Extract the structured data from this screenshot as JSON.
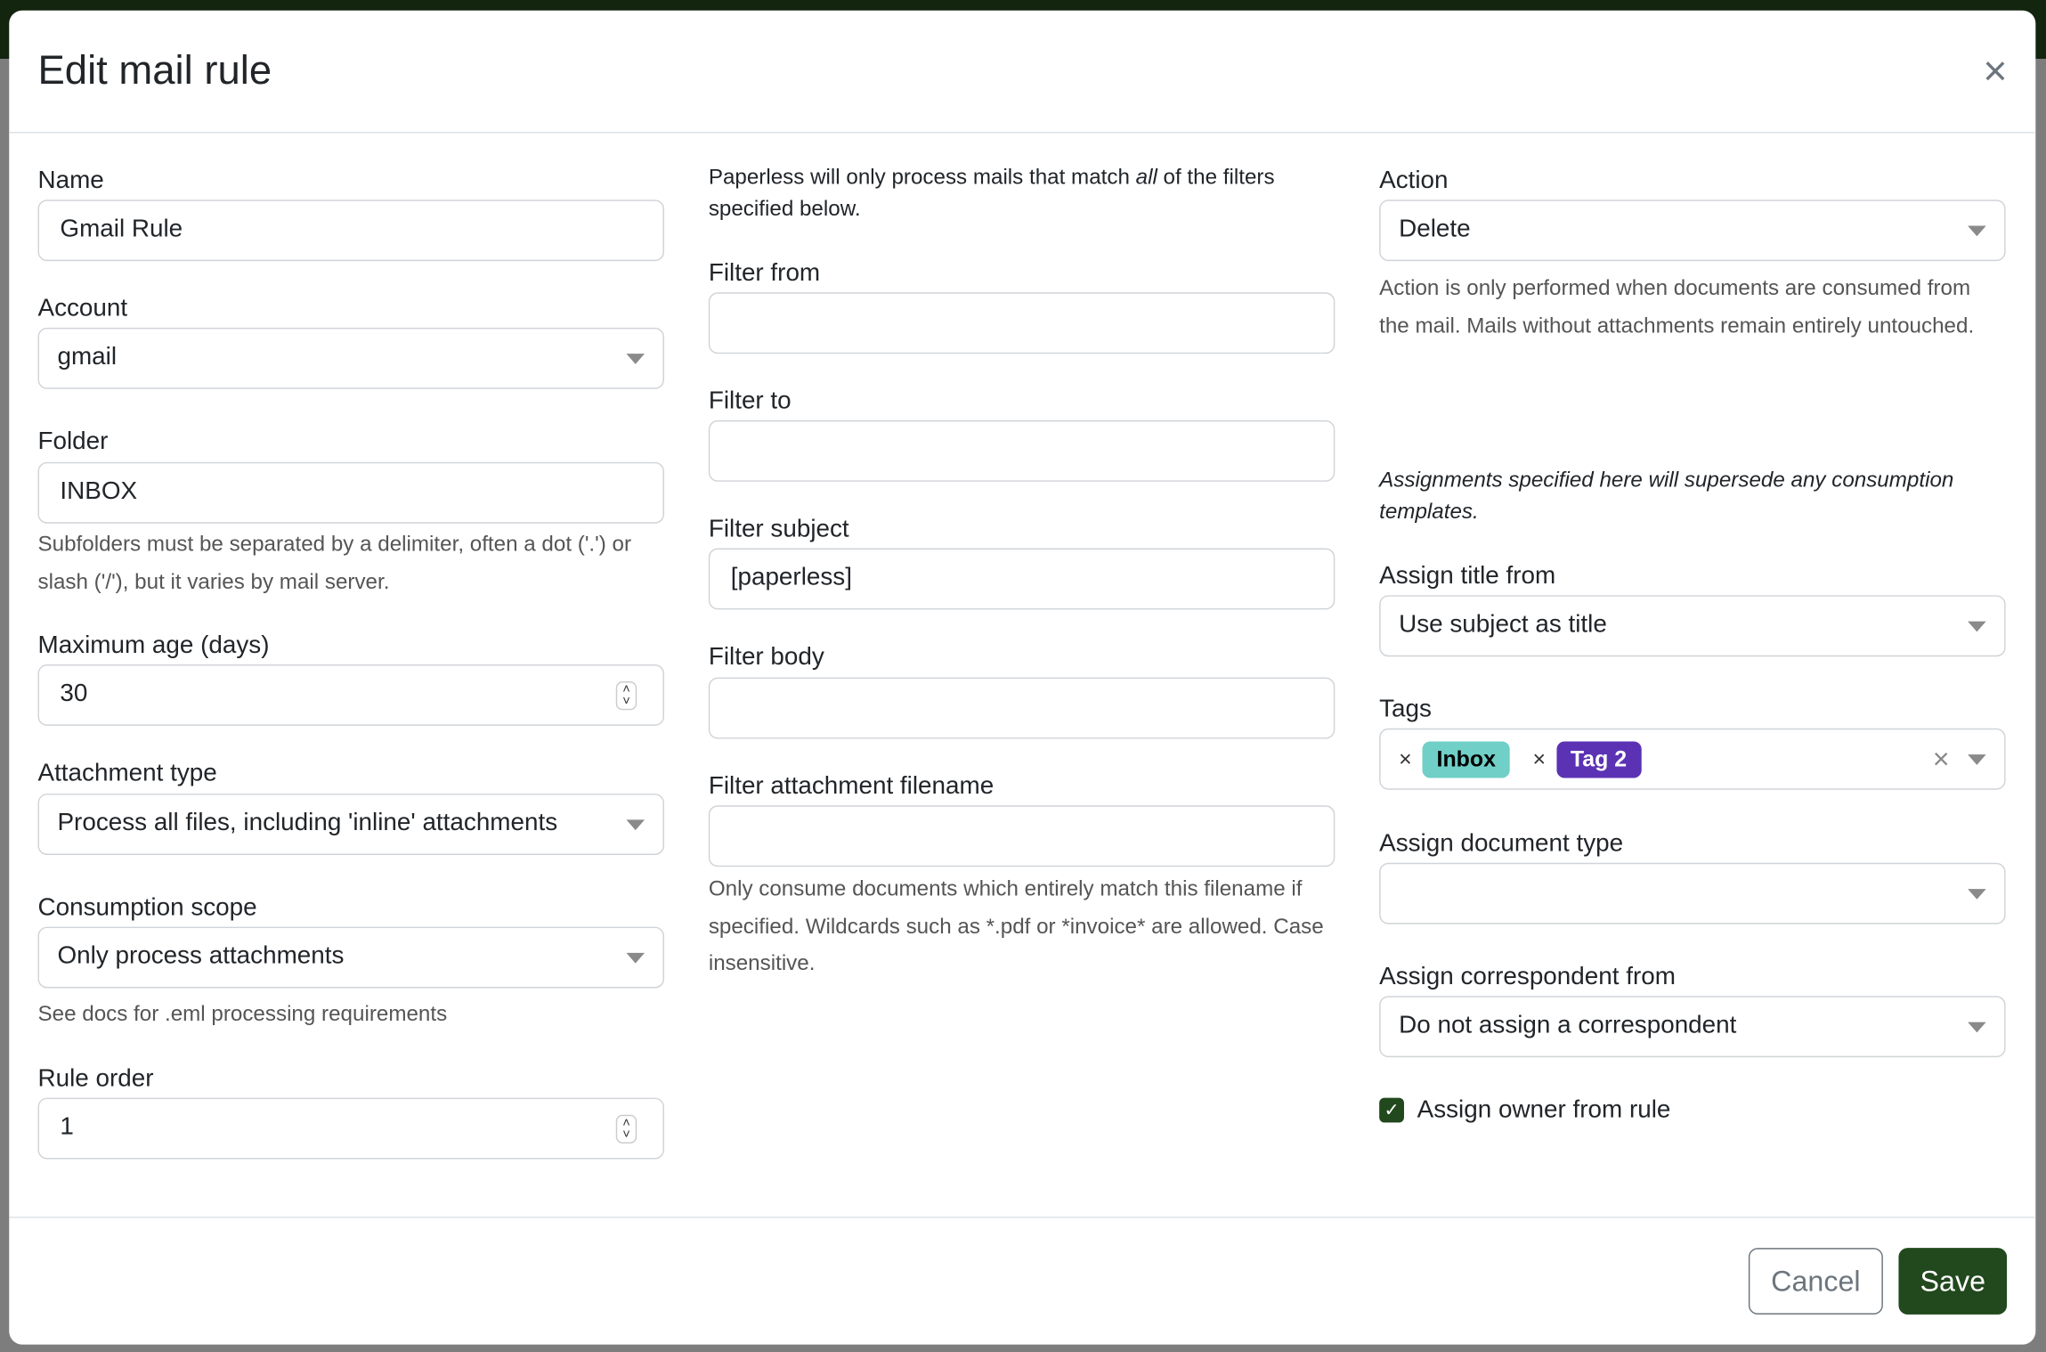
{
  "modal": {
    "title": "Edit mail rule",
    "close_icon": "close-icon"
  },
  "col1": {
    "name": {
      "label": "Name",
      "value": "Gmail Rule"
    },
    "account": {
      "label": "Account",
      "value": "gmail"
    },
    "folder": {
      "label": "Folder",
      "value": "INBOX",
      "help": "Subfolders must be separated by a delimiter, often a dot ('.') or slash ('/'), but it varies by mail server."
    },
    "max_age": {
      "label": "Maximum age (days)",
      "value": "30"
    },
    "attachment_type": {
      "label": "Attachment type",
      "value": "Process all files, including 'inline' attachments"
    },
    "consumption_scope": {
      "label": "Consumption scope",
      "value": "Only process attachments",
      "help": "See docs for .eml processing requirements"
    },
    "rule_order": {
      "label": "Rule order",
      "value": "1"
    }
  },
  "col2": {
    "intro": {
      "before": "Paperless will only process mails that match ",
      "em": "all",
      "after": " of the filters specified below."
    },
    "filter_from": {
      "label": "Filter from",
      "value": ""
    },
    "filter_to": {
      "label": "Filter to",
      "value": ""
    },
    "filter_subject": {
      "label": "Filter subject",
      "value": "[paperless]"
    },
    "filter_body": {
      "label": "Filter body",
      "value": ""
    },
    "filter_attachment": {
      "label": "Filter attachment filename",
      "value": "",
      "help": "Only consume documents which entirely match this filename if specified. Wildcards such as *.pdf or *invoice* are allowed. Case insensitive."
    }
  },
  "col3": {
    "action": {
      "label": "Action",
      "value": "Delete",
      "help": "Action is only performed when documents are consumed from the mail. Mails without attachments remain entirely untouched."
    },
    "assign_note": "Assignments specified here will supersede any consumption templates.",
    "assign_title": {
      "label": "Assign title from",
      "value": "Use subject as title"
    },
    "tags": {
      "label": "Tags",
      "items": [
        {
          "label": "Inbox",
          "bg": "#70cfc7",
          "fg": "#000000"
        },
        {
          "label": "Tag 2",
          "bg": "#5b32b4",
          "fg": "#ffffff"
        }
      ]
    },
    "doc_type": {
      "label": "Assign document type",
      "value": ""
    },
    "correspondent": {
      "label": "Assign correspondent from",
      "value": "Do not assign a correspondent"
    },
    "owner": {
      "label": "Assign owner from rule",
      "checked": true
    }
  },
  "footer": {
    "cancel": "Cancel",
    "save": "Save"
  },
  "colors": {
    "primary": "#22481d",
    "overlay_top": "#13240f"
  }
}
